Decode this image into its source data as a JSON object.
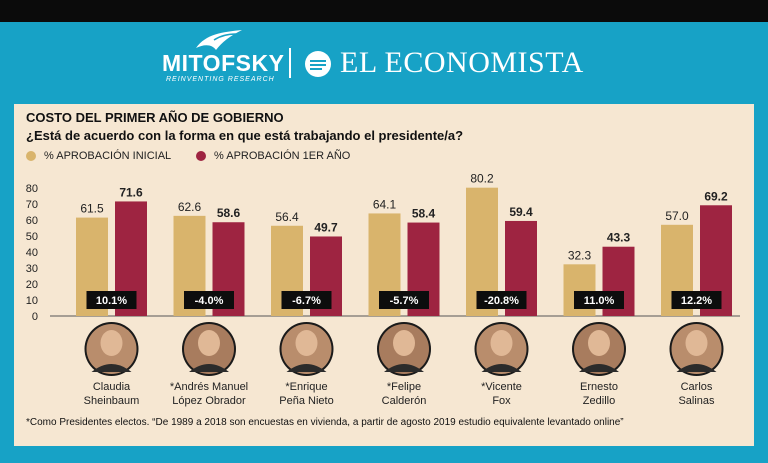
{
  "header": {
    "logo_left": "MITOFSKY",
    "logo_left_tagline": "REINVENTING RESEARCH",
    "logo_right": "EL ECONOMISTA"
  },
  "title": "COSTO DEL PRIMER AÑO DE GOBIERNO",
  "subtitle": "¿Está de acuerdo con la forma en que está trabajando el presidente/a?",
  "footnote": "*Como Presidentes electos. “De 1989 a 2018 son encuestas en vivienda, a partir de agosto 2019 estudio equivalente levantado online”",
  "colors": {
    "initial": "#d9b46c",
    "first_year": "#9e2441",
    "frame": "#17a2c6",
    "panel": "#f6e7d2"
  },
  "chart_data": {
    "type": "bar",
    "title": "COSTO DEL PRIMER AÑO DE GOBIERNO",
    "subtitle": "¿Está de acuerdo con la forma en que está trabajando el presidente/a?",
    "xlabel": "",
    "ylabel": "",
    "ylim": [
      0,
      80
    ],
    "yticks": [
      "0",
      "10",
      "20",
      "30",
      "40",
      "50",
      "60",
      "70",
      "80"
    ],
    "grid": false,
    "legend_position": "top-left",
    "categories": [
      [
        "Claudia",
        "Sheinbaum"
      ],
      [
        "*Andrés Manuel",
        "López Obrador"
      ],
      [
        "*Enrique",
        "Peña Nieto"
      ],
      [
        "*Felipe",
        "Calderón"
      ],
      [
        "*Vicente",
        "Fox"
      ],
      [
        "Ernesto",
        "Zedillo"
      ],
      [
        "Carlos",
        "Salinas"
      ]
    ],
    "series": [
      {
        "name": "% APROBACIÓN INICIAL",
        "values": [
          61.5,
          62.6,
          56.4,
          64.1,
          80.2,
          32.3,
          57.0
        ],
        "labels": [
          "61.5",
          "62.6",
          "56.4",
          "64.1",
          "80.2",
          "32.3",
          "57.0"
        ]
      },
      {
        "name": "% APROBACIÓN 1ER AÑO",
        "values": [
          71.6,
          58.6,
          49.7,
          58.4,
          59.4,
          43.3,
          69.2
        ],
        "labels": [
          "71.6",
          "58.6",
          "49.7",
          "58.4",
          "59.4",
          "43.3",
          "69.2"
        ]
      }
    ],
    "changes": [
      "10.1%",
      "-4.0%",
      "-6.7%",
      "-5.7%",
      "-20.8%",
      "11.0%",
      "12.2%"
    ]
  }
}
